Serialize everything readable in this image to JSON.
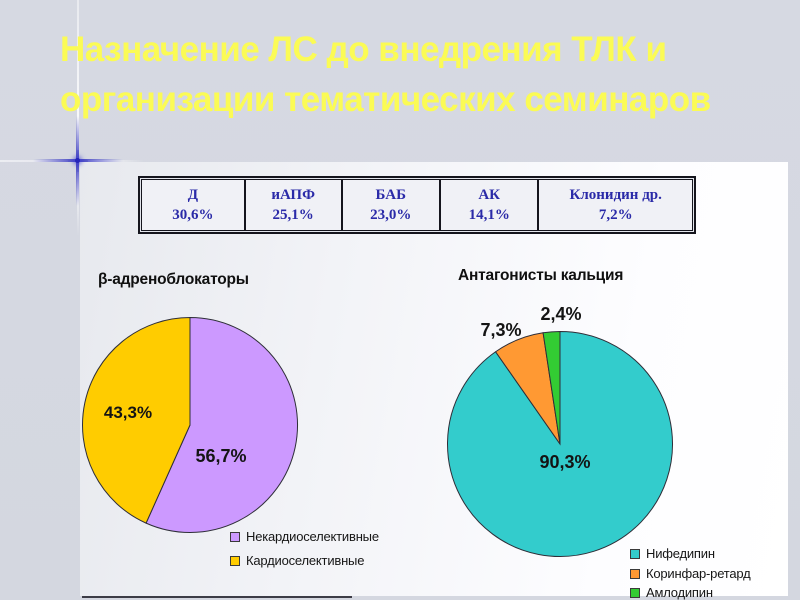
{
  "slide": {
    "title": {
      "line1": "Назначение ЛС до внедрения ТЛК и",
      "line2": "организации тематических семинаров",
      "color": "#FBFB55"
    },
    "background_color": "#D4D7E0",
    "panel_color": "#FFFFFF",
    "table_text_color": "#2A2AA8"
  },
  "chart_data": [
    {
      "type": "table",
      "columns": [
        "Д",
        "иАПФ",
        "БАБ",
        "АК",
        "Клонидин др."
      ],
      "values": [
        30.6,
        25.1,
        23.0,
        14.1,
        7.2
      ],
      "cells": [
        {
          "name": "Д",
          "label": "30,6%"
        },
        {
          "name": "иАПФ",
          "label": "25,1%"
        },
        {
          "name": "БАБ",
          "label": "23,0%"
        },
        {
          "name": "АК",
          "label": "14,1%"
        },
        {
          "name": "Клонидин др.",
          "label": "7,2%"
        }
      ]
    },
    {
      "type": "pie",
      "title": "β-адреноблокаторы",
      "legend_position": "bottom-right",
      "slices": [
        {
          "name": "Некардиоселективные",
          "value": 56.7,
          "label": "56,7%",
          "color": "#CC99FF"
        },
        {
          "name": "Кардиоселективные",
          "value": 43.3,
          "label": "43,3%",
          "color": "#FFCC00"
        }
      ]
    },
    {
      "type": "pie",
      "title": "Антагонисты кальция",
      "legend_position": "bottom-right",
      "slices": [
        {
          "name": "Нифедипин",
          "value": 90.3,
          "label": "90,3%",
          "color": "#33CCCC"
        },
        {
          "name": "Коринфар-ретард",
          "value": 7.3,
          "label": "7,3%",
          "color": "#FF9933"
        },
        {
          "name": "Амлодипин",
          "value": 2.4,
          "label": "2,4%",
          "color": "#33CC33"
        }
      ]
    }
  ]
}
